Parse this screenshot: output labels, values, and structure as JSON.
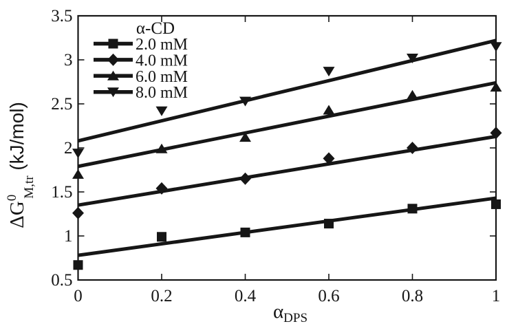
{
  "figure": {
    "background": "#ffffff",
    "ink_color": "#161616"
  },
  "chart_data": {
    "type": "scatter",
    "title": "",
    "xlabel": {
      "prefix": "α",
      "subscript": "DPS"
    },
    "ylabel": {
      "prefix": "ΔG",
      "superscript": "0",
      "subscript": "M,tr",
      "suffix": " (kJ/mol)"
    },
    "xlim": [
      0,
      1
    ],
    "ylim": [
      0.5,
      3.5
    ],
    "x": [
      0,
      0.2,
      0.4,
      0.6,
      0.8,
      1
    ],
    "x_tick_values": [
      0,
      0.2,
      0.4,
      0.6,
      0.8,
      1
    ],
    "x_tick_labels": [
      "0",
      "0.2",
      "0.4",
      "0.6",
      "0.8",
      "1"
    ],
    "y_tick_values": [
      0.5,
      1,
      1.5,
      2,
      2.5,
      3,
      3.5
    ],
    "y_tick_labels": [
      "0.5",
      "1",
      "1.5",
      "2",
      "2.5",
      "3",
      "3.5"
    ],
    "grid": false,
    "legend": {
      "title": "α-CD",
      "position": "top-left-inside"
    },
    "series": [
      {
        "name": "2.0 mM",
        "marker": "square",
        "values": [
          0.67,
          0.99,
          1.04,
          1.14,
          1.31,
          1.36
        ],
        "fit_line": {
          "y_at_x0": 0.78,
          "y_at_x1": 1.43
        }
      },
      {
        "name": "4.0 mM",
        "marker": "diamond",
        "values": [
          1.26,
          1.54,
          1.65,
          1.88,
          2.0,
          2.17
        ],
        "fit_line": {
          "y_at_x0": 1.35,
          "y_at_x1": 2.13
        }
      },
      {
        "name": "6.0 mM",
        "marker": "triangle-up",
        "values": [
          1.7,
          1.99,
          2.12,
          2.43,
          2.6,
          2.69
        ],
        "fit_line": {
          "y_at_x0": 1.79,
          "y_at_x1": 2.74
        }
      },
      {
        "name": "8.0 mM",
        "marker": "triangle-down",
        "values": [
          1.94,
          2.42,
          2.53,
          2.87,
          3.02,
          3.15
        ],
        "fit_line": {
          "y_at_x0": 2.08,
          "y_at_x1": 3.22
        }
      }
    ]
  }
}
